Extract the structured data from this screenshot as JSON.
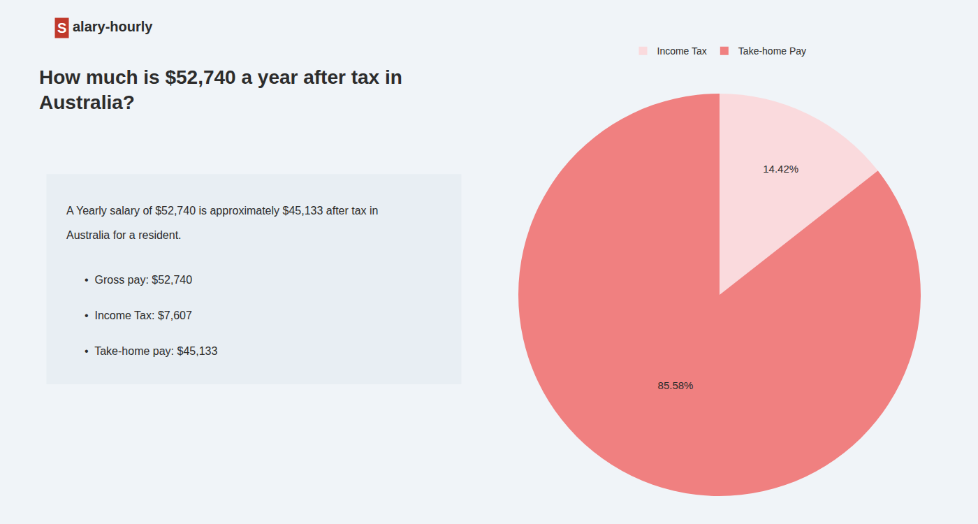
{
  "chart_data": {
    "type": "pie",
    "title": "How much is $52,740 a year after tax in\nAustralia?",
    "categories": [
      "Income Tax",
      "Take-home Pay"
    ],
    "values": [
      14.42,
      85.58
    ],
    "value_labels": [
      "14.42%",
      "85.58%"
    ],
    "colors": [
      "#fadadd",
      "#f08080"
    ],
    "data_labels": true,
    "legend": "top",
    "annotations": [
      "S",
      "alary-hourly",
      "A Yearly salary of $52,740 is approximately $45,133 after tax in",
      "Australia for a resident.",
      "•  Gross pay: $52,740",
      "•  Income Tax: $7,607",
      "•  Take-home pay: $45,133"
    ]
  }
}
